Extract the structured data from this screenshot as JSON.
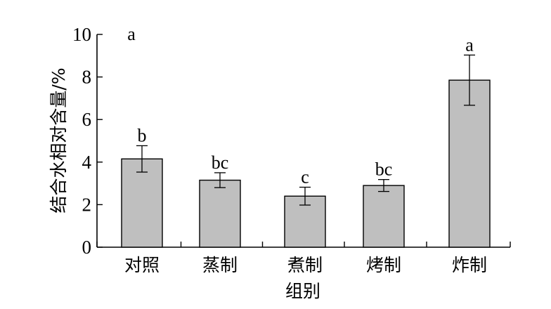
{
  "chart_data": {
    "type": "bar",
    "categories": [
      "对照",
      "蒸制",
      "煮制",
      "烤制",
      "炸制"
    ],
    "values": [
      4.15,
      3.15,
      2.4,
      2.9,
      7.85
    ],
    "errors": [
      0.62,
      0.35,
      0.42,
      0.28,
      1.18
    ],
    "significance": [
      "b",
      "bc",
      "c",
      "bc",
      "a"
    ],
    "panel_label": "a",
    "xlabel": "组别",
    "ylabel": "结合水相对含量/%",
    "ylim": [
      0,
      10
    ],
    "yticks": [
      "0",
      "2",
      "4",
      "6",
      "8",
      "10"
    ],
    "grid": false,
    "colors": {
      "bar": "#bfbfbf",
      "edge": "#000000"
    }
  }
}
